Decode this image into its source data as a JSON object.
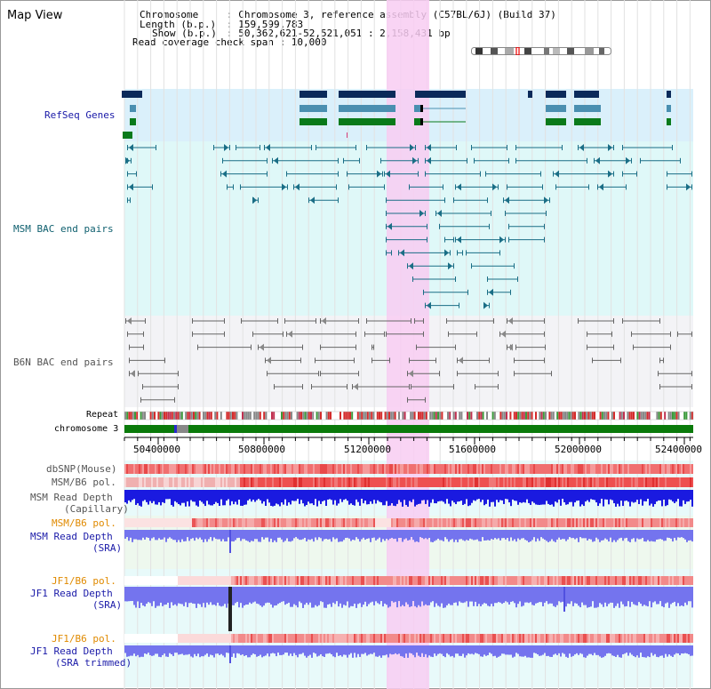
{
  "map_title": "Map View",
  "info": {
    "chromosome_key": "Chromosome",
    "chromosome_val": ": Chromosome 3, reference assembly (C57BL/6J) (Build 37)",
    "length_key": "Length (b.p.)",
    "length_val": ": 159,599,783",
    "show_key": "Show (b.p.)",
    "show_val": ": 50,362,621-52,521,051 : 2,158,431 bp",
    "coverage": "Read coverage check span : 10,000"
  },
  "tracks": {
    "refseq": "RefSeq Genes",
    "msm_bac": "MSM BAC end pairs",
    "b6n_bac": "B6N BAC end pairs",
    "repeat": "Repeat",
    "chromosome": "chromosome 3",
    "dbsnp": "dbSNP(Mouse)",
    "msm_b6_pol_1": "MSM/B6 pol.",
    "msm_read_depth_cap_1": "MSM Read Depth",
    "msm_read_depth_cap_2": "(Capillary)",
    "msm_b6_pol_2": "MSM/B6 pol.",
    "msm_read_depth_sra_1": "MSM Read Depth",
    "msm_read_depth_sra_2": "(SRA)",
    "jf1_b6_pol_1": "JF1/B6 pol.",
    "jf1_read_depth_1": "JF1 Read Depth",
    "jf1_read_depth_2": "(SRA)",
    "jf1_b6_pol_2": "JF1/B6 pol.",
    "jf1_read_depth_trim_1": "JF1 Read Depth",
    "jf1_read_depth_trim_2": "(SRA trimmed)"
  },
  "axis": {
    "ticks": [
      "50400000",
      "50800000",
      "51200000",
      "51600000",
      "52000000",
      "52400000"
    ]
  },
  "colors": {
    "refseq_label": "#1a1aa8",
    "msm_label": "#0e5f6e",
    "b6n_label": "#555555",
    "pol_orange": "#e08a00",
    "depth_blue": "#1a1aa8",
    "highlight": "#f8cdf2",
    "refseq_bg": "#daf0fb",
    "msm_bg": "#dff8f8",
    "b6n_bg": "#f3f3f6",
    "gene_navy": "#0b2a5a",
    "gene_teal": "#4a8fb0",
    "gene_green": "#0a7a1a",
    "bac_line": "#1a6e86",
    "b6n_line": "#666666",
    "chrom_green": "#0a7a0a",
    "depth_cap": "#1a1ae0",
    "depth_sra": "#7474ee"
  }
}
